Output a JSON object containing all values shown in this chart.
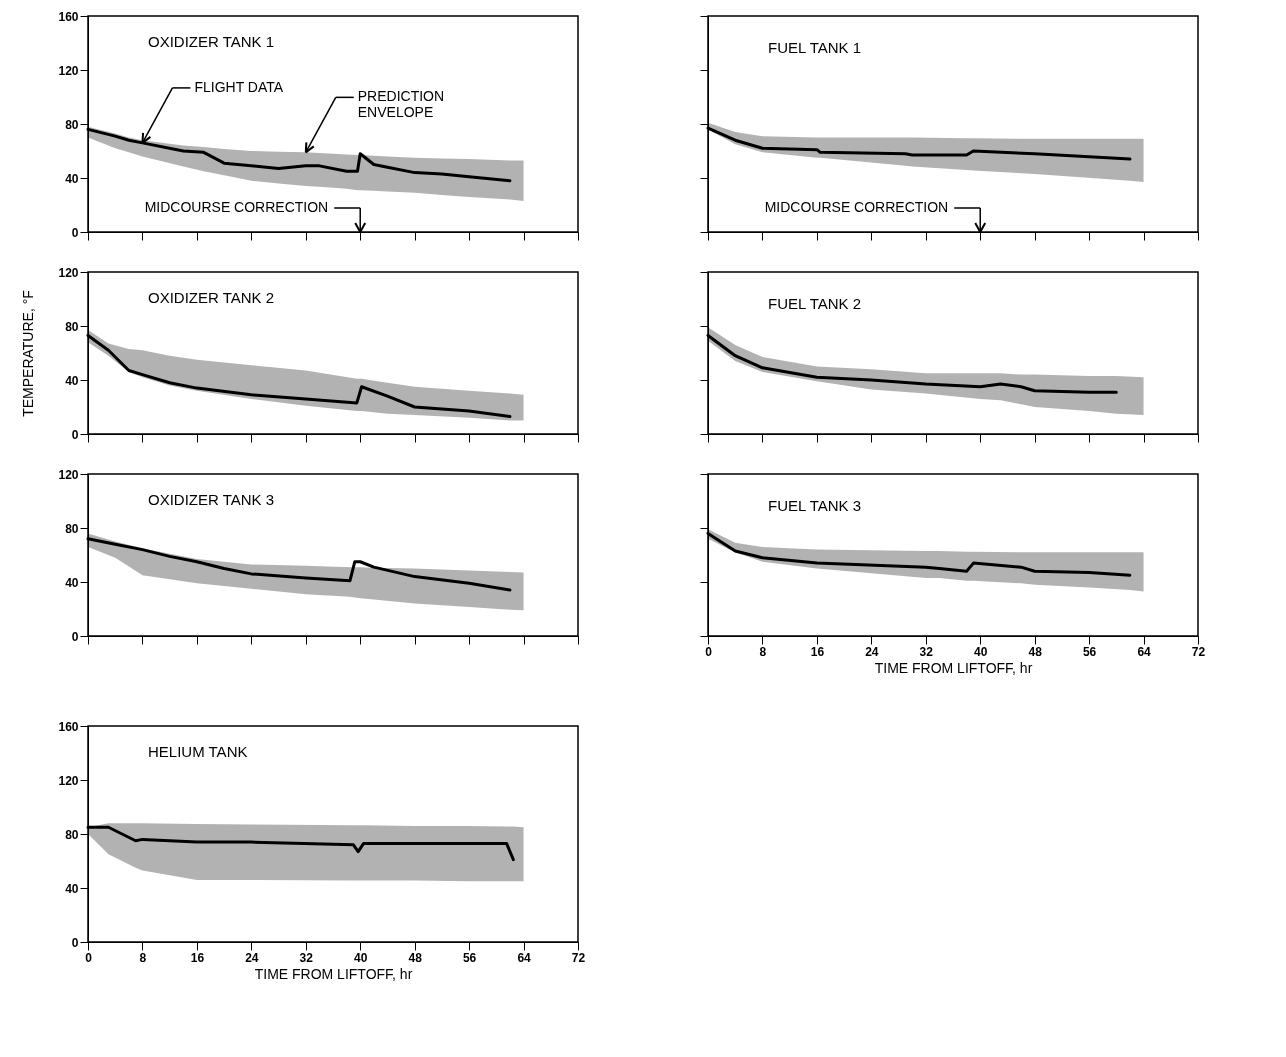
{
  "chart_data": [
    {
      "type": "line",
      "title": "OXIDIZER TANK 1",
      "xlim": [
        0,
        72
      ],
      "xticks": [
        0,
        8,
        16,
        24,
        32,
        40,
        48,
        56,
        64,
        72
      ],
      "ylim": [
        0,
        160
      ],
      "yticks": [
        0,
        40,
        80,
        120,
        160
      ],
      "tick_labels": "y",
      "grid": false,
      "annotations": [
        "FLIGHT DATA",
        "PREDICTION\nENVELOPE"
      ],
      "ref_lines": [
        {
          "axis": "x",
          "value": 40,
          "label": "MIDCOURSE CORRECTION"
        }
      ],
      "series": [
        {
          "color": "#000000",
          "x": [
            0,
            4,
            6,
            8,
            14,
            17,
            20,
            24,
            28,
            32,
            34,
            38,
            39.6,
            40,
            42,
            44,
            48,
            52,
            56,
            62,
            64
          ],
          "values": [
            76,
            71,
            68,
            66,
            60,
            59,
            51,
            49,
            47,
            49,
            49,
            45,
            45,
            58,
            50,
            48,
            44,
            43,
            41,
            38,
            null
          ],
          "upper": [
            78,
            73,
            70,
            68,
            64,
            63,
            61.5,
            60,
            59.5,
            59,
            58.5,
            57.5,
            57,
            57,
            56.5,
            56,
            55,
            54.5,
            54,
            53,
            53
          ],
          "lower": [
            70,
            62,
            59,
            56,
            48.5,
            45,
            42,
            38,
            36,
            34,
            33.5,
            32,
            31,
            31,
            30.5,
            30,
            29,
            27.5,
            26,
            24,
            23
          ]
        }
      ]
    },
    {
      "type": "line",
      "title": "FUEL TANK 1",
      "xlim": [
        0,
        72
      ],
      "xticks": [
        0,
        8,
        16,
        24,
        32,
        40,
        48,
        56,
        64,
        72
      ],
      "ylim": [
        0,
        160
      ],
      "yticks": [
        0,
        40,
        80,
        120,
        160
      ],
      "tick_labels": false,
      "grid": false,
      "ref_lines": [
        {
          "axis": "x",
          "value": 40,
          "label": "MIDCOURSE CORRECTION"
        }
      ],
      "series": [
        {
          "color": "#000000",
          "x": [
            0,
            4,
            8,
            16,
            16.5,
            29,
            30,
            38,
            39,
            48,
            62,
            64
          ],
          "values": [
            77,
            68,
            62,
            61,
            59,
            58,
            57,
            57,
            60,
            58,
            54,
            null
          ],
          "upper": [
            81,
            74,
            71,
            70,
            70,
            70,
            70,
            69.5,
            69.5,
            69,
            69,
            69
          ],
          "lower": [
            76,
            65,
            59,
            55,
            55,
            49,
            48.5,
            46,
            45.5,
            43,
            38,
            37
          ]
        }
      ]
    },
    {
      "type": "line",
      "title": "OXIDIZER TANK 2",
      "ylabel": "TEMPERATURE, °F",
      "xlim": [
        0,
        72
      ],
      "xticks": [
        0,
        8,
        16,
        24,
        32,
        40,
        48,
        56,
        64,
        72
      ],
      "ylim": [
        0,
        120
      ],
      "yticks": [
        0,
        40,
        80,
        120
      ],
      "tick_labels": "y",
      "grid": false,
      "series": [
        {
          "color": "#000000",
          "x": [
            0,
            3,
            6,
            8,
            12,
            16,
            24,
            32,
            39.5,
            40.2,
            44,
            48,
            56,
            62,
            64
          ],
          "values": [
            73,
            62,
            47,
            44,
            38,
            34,
            29,
            26,
            23,
            35,
            28,
            20,
            17,
            13,
            null
          ],
          "upper": [
            77,
            67,
            63,
            62,
            58,
            55,
            51,
            47,
            41,
            41,
            38,
            35,
            32,
            30,
            29
          ],
          "lower": [
            68,
            58,
            46,
            42,
            36,
            32,
            26,
            21,
            17,
            17,
            15,
            14,
            12,
            10,
            10
          ]
        }
      ]
    },
    {
      "type": "line",
      "title": "FUEL TANK 2",
      "xlim": [
        0,
        72
      ],
      "xticks": [
        0,
        8,
        16,
        24,
        32,
        40,
        48,
        56,
        64,
        72
      ],
      "ylim": [
        0,
        120
      ],
      "yticks": [
        0,
        40,
        80,
        120
      ],
      "tick_labels": false,
      "grid": false,
      "series": [
        {
          "color": "#000000",
          "x": [
            0,
            4,
            8,
            16,
            24,
            32,
            40,
            43,
            46,
            48,
            56,
            60,
            64
          ],
          "values": [
            73,
            58,
            49,
            42,
            40,
            37,
            35,
            37,
            35,
            32,
            31,
            31,
            null
          ],
          "upper": [
            79,
            66,
            57,
            50,
            48,
            45,
            45,
            45,
            44,
            44,
            43,
            43,
            42
          ],
          "lower": [
            69,
            54,
            46,
            39,
            33,
            30,
            26,
            25,
            22,
            20,
            17,
            15,
            14
          ]
        }
      ]
    },
    {
      "type": "line",
      "title": "OXIDIZER TANK 3",
      "xlim": [
        0,
        72
      ],
      "xticks": [
        0,
        8,
        16,
        24,
        32,
        40,
        48,
        56,
        64,
        72
      ],
      "ylim": [
        0,
        120
      ],
      "yticks": [
        0,
        40,
        80,
        120
      ],
      "tick_labels": "y",
      "grid": false,
      "series": [
        {
          "color": "#000000",
          "x": [
            0,
            4,
            8,
            12,
            16,
            20,
            24,
            32,
            38.5,
            39.2,
            40,
            42,
            48,
            56,
            62,
            64
          ],
          "values": [
            72,
            68,
            64,
            59,
            55,
            50,
            46,
            43,
            41,
            55,
            55,
            51,
            44,
            39,
            34,
            null
          ],
          "upper": [
            76,
            70,
            65,
            61,
            57,
            55,
            53,
            52,
            51,
            51,
            51,
            50.5,
            50,
            48.5,
            47.5,
            47
          ],
          "lower": [
            66,
            58,
            45,
            42,
            39,
            37,
            35,
            31,
            29,
            28.5,
            28,
            27,
            24,
            21.5,
            19.5,
            19
          ]
        }
      ]
    },
    {
      "type": "line",
      "title": "FUEL TANK 3",
      "xlabel": "TIME FROM LIFTOFF, hr",
      "xlim": [
        0,
        72
      ],
      "xticks": [
        0,
        8,
        16,
        24,
        32,
        40,
        48,
        56,
        64,
        72
      ],
      "ylim": [
        0,
        120
      ],
      "yticks": [
        0,
        40,
        80,
        120
      ],
      "tick_labels": "x",
      "grid": false,
      "series": [
        {
          "color": "#000000",
          "x": [
            0,
            4,
            8,
            16,
            32,
            34,
            38,
            39,
            46,
            48,
            56,
            62,
            64
          ],
          "values": [
            76,
            63,
            58,
            54,
            51,
            50,
            48,
            54,
            51,
            48,
            47,
            45,
            null
          ],
          "upper": [
            79,
            69,
            66,
            64,
            63,
            63,
            62.5,
            62.5,
            62,
            62,
            62,
            62,
            62
          ],
          "lower": [
            72,
            62,
            55,
            50,
            43,
            43,
            41,
            41,
            39,
            38,
            36,
            34,
            33
          ]
        }
      ]
    },
    {
      "type": "line",
      "title": "HELIUM TANK",
      "xlabel": "TIME FROM LIFTOFF, hr",
      "xlim": [
        0,
        72
      ],
      "xticks": [
        0,
        8,
        16,
        24,
        32,
        40,
        48,
        56,
        64,
        72
      ],
      "ylim": [
        0,
        160
      ],
      "yticks": [
        0,
        40,
        80,
        120,
        160
      ],
      "grid": false,
      "series": [
        {
          "color": "#000000",
          "x": [
            0,
            3,
            7,
            8,
            16,
            24,
            39,
            39.7,
            40.5,
            48,
            56,
            61.5,
            62.5,
            64
          ],
          "values": [
            85,
            85,
            75,
            76,
            74,
            74,
            72,
            67,
            73,
            73,
            73,
            73,
            61,
            null
          ],
          "upper": [
            85,
            88,
            88,
            88,
            87.5,
            87,
            86.5,
            86.5,
            86.5,
            86,
            86,
            85.5,
            85.5,
            85
          ],
          "lower": [
            80,
            65,
            55,
            53,
            46,
            46,
            45.5,
            45.5,
            45.5,
            45.5,
            45,
            45,
            45,
            45
          ]
        }
      ]
    }
  ]
}
